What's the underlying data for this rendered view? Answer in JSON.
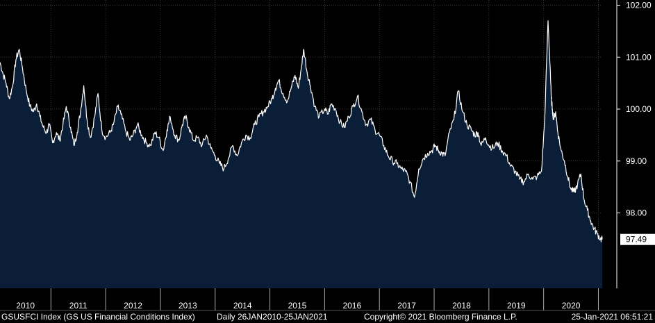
{
  "chart_data": {
    "type": "area",
    "title": "",
    "xlabel": "",
    "ylabel": "",
    "y_ticks": [
      "102.00",
      "101.00",
      "100.00",
      "99.00",
      "98.00"
    ],
    "ylim": [
      96.55,
      102.1
    ],
    "x_tick_labels": [
      "2010",
      "2011",
      "2012",
      "2013",
      "2014",
      "2015",
      "2016",
      "2017",
      "2018",
      "2019",
      "2020"
    ],
    "xlim": [
      2010.07,
      2021.07
    ],
    "last_value_label": "97.49",
    "grid": true,
    "colors": {
      "fill": "#0b1e38",
      "line": "#ffffff",
      "grid": "#3a3a3a",
      "axis": "#888888",
      "last_badge": "#ffffff"
    },
    "series": [
      {
        "x": [
          2010.07,
          2010.12,
          2010.18,
          2010.24,
          2010.3,
          2010.36,
          2010.42,
          2010.48,
          2010.55,
          2010.62,
          2010.68,
          2010.74,
          2010.8,
          2010.86,
          2010.92,
          2010.97,
          2011.03,
          2011.1,
          2011.16,
          2011.22,
          2011.28,
          2011.36,
          2011.42,
          2011.48,
          2011.54,
          2011.6,
          2011.66,
          2011.72,
          2011.8,
          2011.86,
          2011.93,
          2012.0,
          2012.08,
          2012.14,
          2012.22,
          2012.28,
          2012.36,
          2012.44,
          2012.5,
          2012.58,
          2012.66,
          2012.74,
          2012.82,
          2012.9,
          2012.97,
          2013.05,
          2013.12,
          2013.18,
          2013.26,
          2013.34,
          2013.4,
          2013.46,
          2013.52,
          2013.6,
          2013.68,
          2013.76,
          2013.84,
          2013.92,
          2014.0,
          2014.08,
          2014.16,
          2014.24,
          2014.32,
          2014.4,
          2014.48,
          2014.56,
          2014.64,
          2014.72,
          2014.8,
          2014.88,
          2014.96,
          2015.04,
          2015.1,
          2015.16,
          2015.24,
          2015.32,
          2015.4,
          2015.46,
          2015.52,
          2015.58,
          2015.62,
          2015.68,
          2015.74,
          2015.82,
          2015.9,
          2016.0,
          2016.06,
          2016.12,
          2016.2,
          2016.28,
          2016.36,
          2016.44,
          2016.52,
          2016.6,
          2016.68,
          2016.76,
          2016.84,
          2016.92,
          2017.0,
          2017.08,
          2017.16,
          2017.24,
          2017.32,
          2017.4,
          2017.48,
          2017.56,
          2017.64,
          2017.72,
          2017.8,
          2017.88,
          2017.96,
          2018.02,
          2018.08,
          2018.14,
          2018.2,
          2018.28,
          2018.36,
          2018.44,
          2018.52,
          2018.6,
          2018.68,
          2018.74,
          2018.8,
          2018.86,
          2018.94,
          2019.0,
          2019.08,
          2019.16,
          2019.24,
          2019.32,
          2019.4,
          2019.48,
          2019.56,
          2019.64,
          2019.72,
          2019.8,
          2019.88,
          2019.96,
          2020.02,
          2020.08,
          2020.12,
          2020.14,
          2020.16,
          2020.18,
          2020.22,
          2020.26,
          2020.32,
          2020.38,
          2020.44,
          2020.5,
          2020.56,
          2020.62,
          2020.68,
          2020.74,
          2020.8,
          2020.86,
          2020.92,
          2020.98,
          2021.04,
          2021.07
        ],
        "values": [
          100.9,
          100.7,
          100.5,
          100.2,
          100.45,
          100.95,
          101.15,
          100.8,
          100.35,
          100.05,
          99.95,
          100.1,
          99.85,
          99.65,
          99.55,
          99.7,
          99.35,
          99.55,
          99.4,
          99.7,
          100.05,
          99.65,
          99.3,
          99.55,
          99.95,
          100.45,
          99.8,
          99.45,
          99.85,
          100.3,
          99.6,
          99.45,
          99.55,
          99.7,
          100.05,
          99.9,
          99.6,
          99.4,
          99.5,
          99.7,
          99.5,
          99.35,
          99.3,
          99.55,
          99.45,
          99.2,
          99.6,
          99.85,
          99.5,
          99.4,
          99.7,
          99.85,
          99.65,
          99.4,
          99.45,
          99.3,
          99.5,
          99.25,
          99.1,
          98.95,
          98.85,
          99.05,
          99.3,
          99.1,
          99.35,
          99.5,
          99.45,
          99.7,
          99.85,
          99.95,
          100.05,
          100.2,
          100.4,
          100.55,
          100.3,
          100.15,
          100.45,
          100.65,
          100.4,
          100.85,
          101.15,
          100.7,
          100.45,
          100.05,
          99.85,
          100.0,
          99.9,
          100.1,
          100.0,
          99.75,
          99.65,
          99.85,
          100.05,
          100.25,
          99.95,
          99.7,
          99.8,
          99.6,
          99.5,
          99.3,
          99.1,
          99.0,
          98.95,
          98.85,
          98.8,
          98.6,
          98.3,
          98.85,
          99.05,
          99.15,
          99.2,
          99.3,
          99.2,
          99.15,
          99.1,
          99.55,
          99.8,
          100.35,
          99.95,
          99.7,
          99.6,
          99.5,
          99.55,
          99.3,
          99.45,
          99.3,
          99.25,
          99.35,
          99.2,
          99.1,
          98.9,
          98.8,
          98.65,
          98.6,
          98.75,
          98.65,
          98.7,
          98.8,
          99.8,
          101.7,
          100.8,
          100.2,
          100.0,
          99.8,
          99.95,
          99.55,
          99.2,
          99.0,
          98.7,
          98.45,
          98.4,
          98.55,
          98.75,
          98.25,
          98.05,
          97.85,
          97.7,
          97.6,
          97.5,
          97.49
        ]
      }
    ]
  },
  "footer": {
    "index_name": "GSUSFCI Index (GS US Financial Conditions Index)",
    "range": "Daily 26JAN2010-25JAN2021",
    "copyright": "Copyright© 2021 Bloomberg Finance L.P.",
    "timestamp": "25-Jan-2021 06:51:21"
  }
}
